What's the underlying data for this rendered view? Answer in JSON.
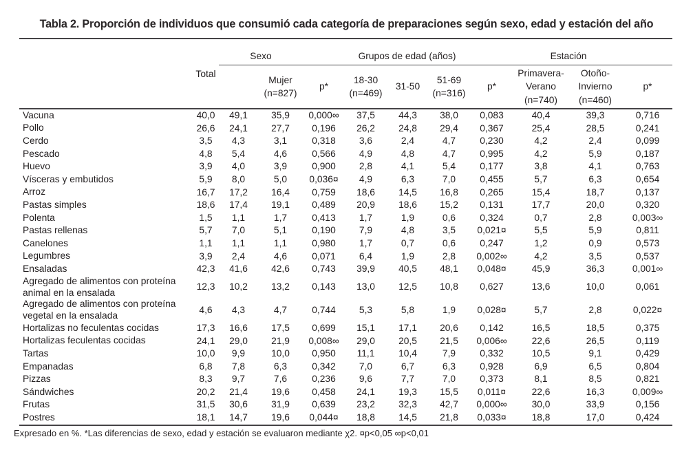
{
  "title": "Tabla 2. Proporción de individuos que consumió cada categoría de preparaciones según sexo, edad y estación del año",
  "footnote": "Expresado en %. *Las diferencias de sexo, edad y estación se evaluaron mediante χ2.  ¤p<0,05 ∞p<0,01",
  "table": {
    "groups": {
      "sexo": "Sexo",
      "edad": "Grupos de edad (años)",
      "estacion": "Estación"
    },
    "headers": {
      "total": "Total",
      "varon": "",
      "mujer": "Mujer\n(n=827)",
      "p_sexo": "p*",
      "edad_18_30": "18-30\n(n=469)",
      "edad_31_50": "31-50",
      "edad_51_69": "51-69\n(n=316)",
      "p_edad": "p*",
      "primavera_verano": "Primavera-\nVerano\n(n=740)",
      "otono_invierno": "Otoño-\nInvierno\n(n=460)",
      "p_estacion": "p*"
    },
    "rows": [
      {
        "label": "Vacuna",
        "values": [
          "40,0",
          "49,1",
          "35,9",
          "0,000∞",
          "37,5",
          "44,3",
          "38,0",
          "0,083",
          "40,4",
          "39,3",
          "0,716"
        ]
      },
      {
        "label": "Pollo",
        "values": [
          "26,6",
          "24,1",
          "27,7",
          "0,196",
          "26,2",
          "24,8",
          "29,4",
          "0,367",
          "25,4",
          "28,5",
          "0,241"
        ]
      },
      {
        "label": "Cerdo",
        "values": [
          "3,5",
          "4,3",
          "3,1",
          "0,318",
          "3,6",
          "2,4",
          "4,7",
          "0,230",
          "4,2",
          "2,4",
          "0,099"
        ]
      },
      {
        "label": "Pescado",
        "values": [
          "4,8",
          "5,4",
          "4,6",
          "0,566",
          "4,9",
          "4,8",
          "4,7",
          "0,995",
          "4,2",
          "5,9",
          "0,187"
        ]
      },
      {
        "label": "Huevo",
        "values": [
          "3,9",
          "4,0",
          "3,9",
          "0,900",
          "2,8",
          "4,1",
          "5,4",
          "0,177",
          "3,8",
          "4,1",
          "0,763"
        ]
      },
      {
        "label": "Vísceras y embutidos",
        "values": [
          "5,9",
          "8,0",
          "5,0",
          "0,036¤",
          "4,9",
          "6,3",
          "7,0",
          "0,455",
          "5,7",
          "6,3",
          "0,654"
        ]
      },
      {
        "label": "Arroz",
        "values": [
          "16,7",
          "17,2",
          "16,4",
          "0,759",
          "18,6",
          "14,5",
          "16,8",
          "0,265",
          "15,4",
          "18,7",
          "0,137"
        ]
      },
      {
        "label": "Pastas simples",
        "values": [
          "18,6",
          "17,4",
          "19,1",
          "0,489",
          "20,9",
          "18,6",
          "15,2",
          "0,131",
          "17,7",
          "20,0",
          "0,320"
        ]
      },
      {
        "label": "Polenta",
        "values": [
          "1,5",
          "1,1",
          "1,7",
          "0,413",
          "1,7",
          "1,9",
          "0,6",
          "0,324",
          "0,7",
          "2,8",
          "0,003∞"
        ]
      },
      {
        "label": "Pastas rellenas",
        "values": [
          "5,7",
          "7,0",
          "5,1",
          "0,190",
          "7,9",
          "4,8",
          "3,5",
          "0,021¤",
          "5,5",
          "5,9",
          "0,811"
        ]
      },
      {
        "label": "Canelones",
        "values": [
          "1,1",
          "1,1",
          "1,1",
          "0,980",
          "1,7",
          "0,7",
          "0,6",
          "0,247",
          "1,2",
          "0,9",
          "0,573"
        ]
      },
      {
        "label": "Legumbres",
        "values": [
          "3,9",
          "2,4",
          "4,6",
          "0,071",
          "6,4",
          "1,9",
          "2,8",
          "0,002∞",
          "4,2",
          "3,5",
          "0,537"
        ]
      },
      {
        "label": "Ensaladas",
        "values": [
          "42,3",
          "41,6",
          "42,6",
          "0,743",
          "39,9",
          "40,5",
          "48,1",
          "0,048¤",
          "45,9",
          "36,3",
          "0,001∞"
        ]
      },
      {
        "label": "Agregado de alimentos con proteína animal en la ensalada",
        "values": [
          "12,3",
          "10,2",
          "13,2",
          "0,143",
          "13,0",
          "12,5",
          "10,8",
          "0,627",
          "13,6",
          "10,0",
          "0,061"
        ]
      },
      {
        "label": "Agregado de alimentos con proteína vegetal en la ensalada",
        "values": [
          "4,6",
          "4,3",
          "4,7",
          "0,744",
          "5,3",
          "5,8",
          "1,9",
          "0,028¤",
          "5,7",
          "2,8",
          "0,022¤"
        ]
      },
      {
        "label": "Hortalizas no feculentas cocidas",
        "values": [
          "17,3",
          "16,6",
          "17,5",
          "0,699",
          "15,1",
          "17,1",
          "20,6",
          "0,142",
          "16,5",
          "18,5",
          "0,375"
        ]
      },
      {
        "label": "Hortalizas feculentas cocidas",
        "values": [
          "24,1",
          "29,0",
          "21,9",
          "0,008∞",
          "29,0",
          "20,5",
          "21,5",
          "0,006∞",
          "22,6",
          "26,5",
          "0,119"
        ]
      },
      {
        "label": "Tartas",
        "values": [
          "10,0",
          "9,9",
          "10,0",
          "0,950",
          "11,1",
          "10,4",
          "7,9",
          "0,332",
          "10,5",
          "9,1",
          "0,429"
        ]
      },
      {
        "label": "Empanadas",
        "values": [
          "6,8",
          "7,8",
          "6,3",
          "0,342",
          "7,0",
          "6,7",
          "6,3",
          "0,928",
          "6,9",
          "6,5",
          "0,804"
        ]
      },
      {
        "label": "Pizzas",
        "values": [
          "8,3",
          "9,7",
          "7,6",
          "0,236",
          "9,6",
          "7,7",
          "7,0",
          "0,373",
          "8,1",
          "8,5",
          "0,821"
        ]
      },
      {
        "label": "Sándwiches",
        "values": [
          "20,2",
          "21,4",
          "19,6",
          "0,458",
          "24,1",
          "19,3",
          "15,5",
          "0,011¤",
          "22,6",
          "16,3",
          "0,009∞"
        ]
      },
      {
        "label": "Frutas",
        "values": [
          "31,5",
          "30,6",
          "31,9",
          "0,639",
          "23,2",
          "32,3",
          "42,7",
          "0,000∞",
          "30,0",
          "33,9",
          "0,156"
        ]
      },
      {
        "label": "Postres",
        "values": [
          "18,1",
          "14,7",
          "19,6",
          "0,044¤",
          "18,8",
          "14,5",
          "21,8",
          "0,033¤",
          "18,8",
          "17,0",
          "0,424"
        ]
      }
    ]
  }
}
